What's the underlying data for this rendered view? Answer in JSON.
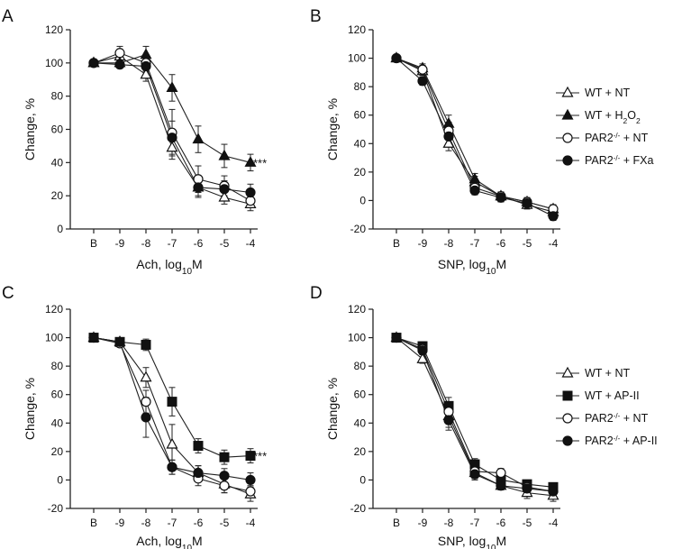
{
  "figure": {
    "panels": [
      {
        "letter": "A"
      },
      {
        "letter": "B"
      },
      {
        "letter": "C"
      },
      {
        "letter": "D"
      }
    ]
  },
  "chart_data": [
    {
      "panel": "A",
      "type": "line",
      "title": "",
      "xlabel": "Ach, log",
      "xlabel_sub": "10",
      "xlabel_tail": "M",
      "ylabel": "Change, %",
      "categories": [
        "B",
        "-9",
        "-8",
        "-7",
        "-6",
        "-5",
        "-4"
      ],
      "ylim": [
        0,
        120
      ],
      "yticks": [
        0,
        20,
        40,
        60,
        80,
        100,
        120
      ],
      "significance": "***",
      "significance_at": 40,
      "legend": false,
      "series": [
        {
          "name": "WT + NT",
          "marker": "triangle-open",
          "values": [
            100,
            104,
            93,
            49,
            25,
            19,
            15
          ],
          "errors": [
            0,
            3,
            4,
            7,
            5,
            4,
            4
          ]
        },
        {
          "name": "WT + H2O2",
          "marker": "triangle-filled",
          "values": [
            100,
            100,
            105,
            85,
            54,
            44,
            40
          ],
          "errors": [
            0,
            2,
            5,
            8,
            8,
            7,
            5
          ]
        },
        {
          "name": "PAR2-/- + NT",
          "marker": "circle-open",
          "values": [
            100,
            106,
            100,
            58,
            30,
            26,
            17
          ],
          "errors": [
            0,
            4,
            4,
            14,
            8,
            6,
            4
          ]
        },
        {
          "name": "PAR2-/- + FXa",
          "marker": "circle-filled",
          "values": [
            100,
            99,
            98,
            55,
            25,
            24,
            22
          ],
          "errors": [
            0,
            2,
            3,
            10,
            6,
            5,
            5
          ]
        }
      ]
    },
    {
      "panel": "B",
      "type": "line",
      "title": "",
      "xlabel": "SNP, log",
      "xlabel_sub": "10",
      "xlabel_tail": "M",
      "ylabel": "Change, %",
      "categories": [
        "B",
        "-9",
        "-8",
        "-7",
        "-6",
        "-5",
        "-4"
      ],
      "ylim": [
        -20,
        120
      ],
      "yticks": [
        -20,
        0,
        20,
        40,
        60,
        80,
        100,
        120
      ],
      "legend": true,
      "legend_position": "right",
      "series": [
        {
          "name": "WT + NT",
          "label_main": "WT + NT",
          "label_sup": "",
          "label_sub": "",
          "label_tail": "",
          "marker": "triangle-open",
          "values": [
            100,
            91,
            40,
            13,
            3,
            -3,
            -8
          ],
          "errors": [
            0,
            3,
            5,
            4,
            3,
            3,
            3
          ]
        },
        {
          "name": "WT + H2O2",
          "label_main": "WT + H",
          "label_sup": "",
          "label_sub": "2",
          "label_tail": "O",
          "label_tail_sub": "2",
          "marker": "triangle-filled",
          "values": [
            100,
            93,
            54,
            15,
            3,
            -1,
            -6
          ],
          "errors": [
            0,
            3,
            6,
            4,
            3,
            3,
            3
          ]
        },
        {
          "name": "PAR2-/- + NT",
          "label_main": "PAR2",
          "label_sup": "-/-",
          "label_sub": "",
          "label_tail": " + NT",
          "marker": "circle-open",
          "values": [
            100,
            92,
            49,
            9,
            3,
            -1,
            -6
          ],
          "errors": [
            0,
            3,
            6,
            4,
            3,
            3,
            3
          ]
        },
        {
          "name": "PAR2-/- + FXa",
          "label_main": "PAR2",
          "label_sup": "-/-",
          "label_sub": "",
          "label_tail": " + FXa",
          "marker": "circle-filled",
          "values": [
            100,
            84,
            45,
            7,
            2,
            -2,
            -11
          ],
          "errors": [
            0,
            3,
            5,
            3,
            3,
            3,
            3
          ]
        }
      ]
    },
    {
      "panel": "C",
      "type": "line",
      "title": "",
      "xlabel": "Ach, log",
      "xlabel_sub": "10",
      "xlabel_tail": "M",
      "ylabel": "Change, %",
      "categories": [
        "B",
        "-9",
        "-8",
        "-7",
        "-6",
        "-5",
        "-4"
      ],
      "ylim": [
        -20,
        120
      ],
      "yticks": [
        -20,
        0,
        20,
        40,
        60,
        80,
        100,
        120
      ],
      "significance": "***",
      "significance_at": 17,
      "legend": false,
      "series": [
        {
          "name": "WT + NT",
          "marker": "triangle-open",
          "values": [
            100,
            97,
            72,
            25,
            5,
            -3,
            -10
          ],
          "errors": [
            0,
            2,
            7,
            14,
            5,
            6,
            5
          ]
        },
        {
          "name": "WT + AP-II",
          "marker": "square-filled",
          "values": [
            100,
            97,
            95,
            55,
            24,
            16,
            17
          ],
          "errors": [
            0,
            2,
            4,
            10,
            5,
            5,
            5
          ]
        },
        {
          "name": "PAR2-/- + NT",
          "marker": "circle-open",
          "values": [
            100,
            96,
            55,
            9,
            1,
            -4,
            -8
          ],
          "errors": [
            0,
            2,
            8,
            5,
            5,
            5,
            4
          ]
        },
        {
          "name": "PAR2-/- + AP-II",
          "marker": "circle-filled",
          "values": [
            100,
            97,
            44,
            9,
            5,
            3,
            0
          ],
          "errors": [
            0,
            2,
            14,
            5,
            5,
            5,
            5
          ]
        }
      ]
    },
    {
      "panel": "D",
      "type": "line",
      "title": "",
      "xlabel": "SNP, log",
      "xlabel_sub": "10",
      "xlabel_tail": "M",
      "ylabel": "Change, %",
      "categories": [
        "B",
        "-9",
        "-8",
        "-7",
        "-6",
        "-5",
        "-4"
      ],
      "ylim": [
        -20,
        120
      ],
      "yticks": [
        -20,
        0,
        20,
        40,
        60,
        80,
        100,
        120
      ],
      "legend": true,
      "legend_position": "right",
      "series": [
        {
          "name": "WT + NT",
          "label_main": "WT + NT",
          "label_sup": "",
          "label_sub": "",
          "label_tail": "",
          "marker": "triangle-open",
          "values": [
            100,
            85,
            45,
            5,
            -4,
            -9,
            -11
          ],
          "errors": [
            0,
            3,
            8,
            4,
            3,
            4,
            4
          ]
        },
        {
          "name": "WT + AP-II",
          "label_main": "WT + AP-II",
          "label_sup": "",
          "label_sub": "",
          "label_tail": "",
          "marker": "square-filled",
          "values": [
            100,
            94,
            52,
            11,
            0,
            -3,
            -5
          ],
          "errors": [
            0,
            3,
            6,
            4,
            3,
            3,
            3
          ]
        },
        {
          "name": "PAR2-/- + NT",
          "label_main": "PAR2",
          "label_sup": "-/-",
          "label_sub": "",
          "label_tail": " + NT",
          "marker": "circle-open",
          "values": [
            100,
            92,
            48,
            6,
            5,
            -5,
            -8
          ],
          "errors": [
            0,
            3,
            7,
            4,
            3,
            3,
            3
          ]
        },
        {
          "name": "PAR2-/- + AP-II",
          "label_main": "PAR2",
          "label_sup": "-/-",
          "label_sub": "",
          "label_tail": " + AP-II",
          "marker": "circle-filled",
          "values": [
            100,
            91,
            42,
            4,
            -4,
            -6,
            -8
          ],
          "errors": [
            0,
            3,
            7,
            4,
            3,
            3,
            3
          ]
        }
      ]
    }
  ]
}
